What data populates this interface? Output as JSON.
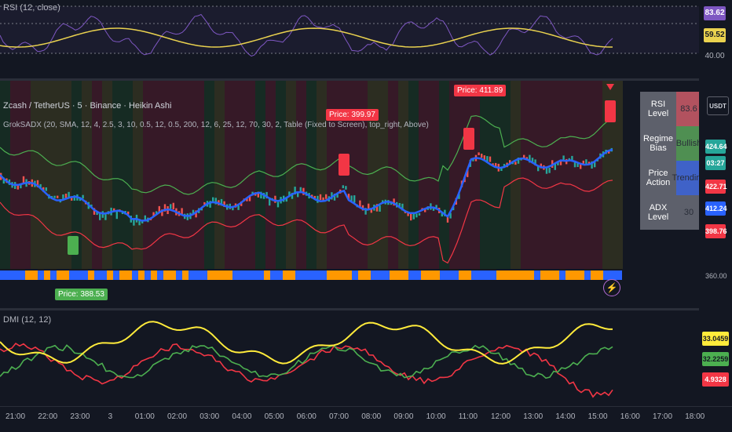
{
  "rsi": {
    "legend": "RSI (12, close)",
    "levels": [
      "83.62",
      "59.52",
      "40.00"
    ],
    "colors": {
      "rsi": "#7e57c2",
      "ma": "#ead24f"
    }
  },
  "main": {
    "title": "Zcash / TetherUS · 5 · Binance · Heikin Ashi",
    "indicator": "GrokSADX (20, SMA, 12, 4, 2.5, 3, 10, 0.5, 12, 0.5, 200, 12, 6, 25, 12, 70, 30, 2, Table (Fixed to Screen), top_right, Above)",
    "labels": [
      {
        "text": "Price: 399.97",
        "color": "#f23645"
      },
      {
        "text": "Price: 411.89",
        "color": "#f23645"
      },
      {
        "text": "Price: 388.53",
        "color": "#4caf50"
      }
    ],
    "price_axis": [
      {
        "value": "424.64",
        "color": "#26a69a"
      },
      {
        "value": "03:27",
        "color": "#26a69a"
      },
      {
        "value": "422.71",
        "color": "#f23645"
      },
      {
        "value": "412.24",
        "color": "#2962ff"
      },
      {
        "value": "398.76",
        "color": "#f23645"
      },
      {
        "value": "360.00",
        "color": ""
      }
    ],
    "currency": "USDT",
    "table": [
      {
        "key": "RSI Level",
        "value": "83.6",
        "color": "#b2525f"
      },
      {
        "key": "Regime Bias",
        "value": "Bullish",
        "color": "#4f8f52"
      },
      {
        "key": "Price Action",
        "value": "Trending",
        "color": "#3f62c8"
      },
      {
        "key": "ADX Level",
        "value": "30",
        "color": "#5d606b"
      }
    ],
    "colors": {
      "up": "#26a69a",
      "down": "#ef5350",
      "basis": "#2962ff",
      "upper": "#4caf50",
      "lower": "#f23645",
      "strip_a": "#ff9800",
      "strip_b": "#2962ff"
    }
  },
  "dmi": {
    "legend": "DMI (12, 12)",
    "values": [
      {
        "value": "33.0459",
        "color": "#ffeb3b"
      },
      {
        "value": "32.2259",
        "color": "#4caf50"
      },
      {
        "value": "4.9328",
        "color": "#f23645"
      }
    ]
  },
  "time_axis": [
    "21:00",
    "22:00",
    "23:00",
    "3",
    "01:00",
    "02:00",
    "03:00",
    "04:00",
    "05:00",
    "06:00",
    "07:00",
    "08:00",
    "09:00",
    "10:00",
    "11:00",
    "12:00",
    "13:00",
    "14:00",
    "15:00",
    "16:00",
    "17:00",
    "18:00"
  ]
}
